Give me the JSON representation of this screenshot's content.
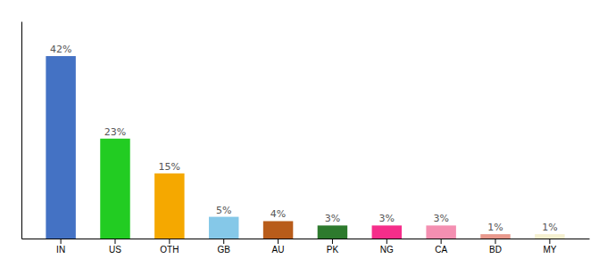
{
  "chart_data": {
    "type": "bar",
    "categories": [
      "IN",
      "US",
      "OTH",
      "GB",
      "AU",
      "PK",
      "NG",
      "CA",
      "BD",
      "MY"
    ],
    "values": [
      42,
      23,
      15,
      5,
      4,
      3,
      3,
      3,
      1,
      1
    ],
    "value_labels": [
      "42%",
      "23%",
      "15%",
      "5%",
      "4%",
      "3%",
      "3%",
      "3%",
      "1%",
      "1%"
    ],
    "data_labels": true,
    "colors": [
      "#4472c4",
      "#22cc22",
      "#f5a800",
      "#85c8e8",
      "#b85c1a",
      "#2d7a2d",
      "#f52d8a",
      "#f48fb1",
      "#e8998d",
      "#f5f0d0"
    ],
    "ylim": [
      0,
      50
    ],
    "tick_labels": "x",
    "grid": false
  }
}
